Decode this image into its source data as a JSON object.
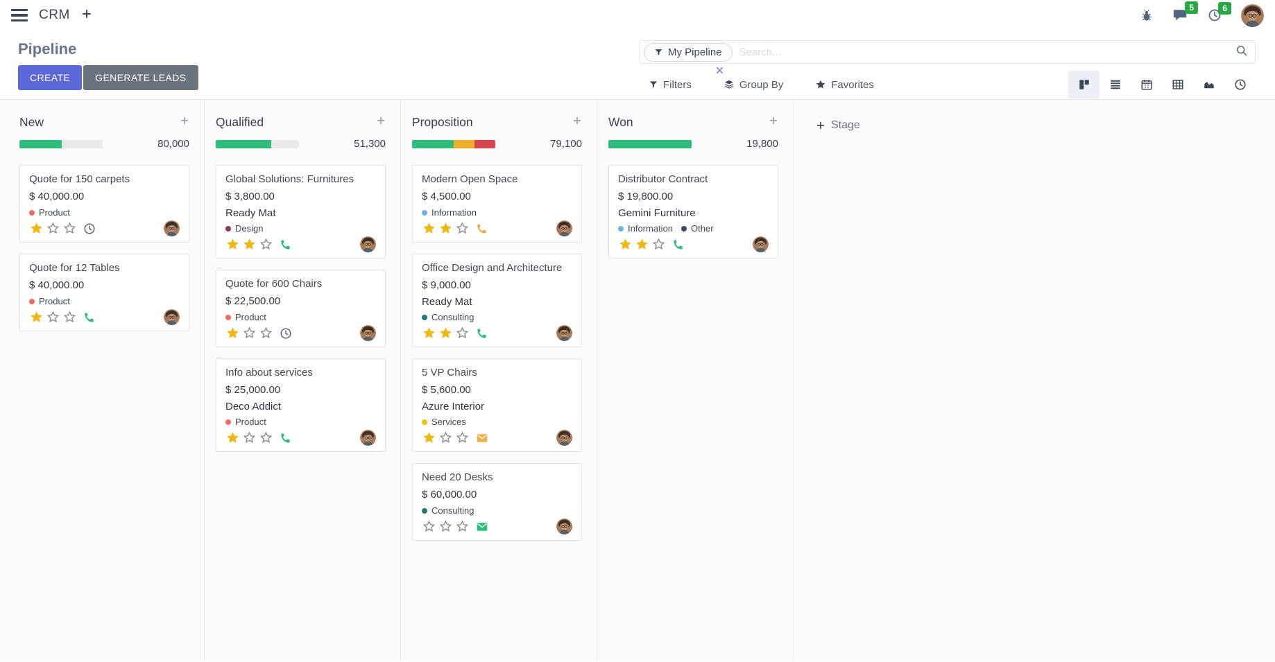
{
  "theme": {
    "primary": "#5C67D8",
    "secondary": "#6C727E",
    "success": "#2EBD7D",
    "warning": "#F0AD27",
    "danger": "#D9444F",
    "badge_green": "#28A745"
  },
  "navbar": {
    "app_name": "CRM",
    "message_badge": "5",
    "activity_badge": "6"
  },
  "control_panel": {
    "title": "Pipeline",
    "create_label": "CREATE",
    "generate_leads_label": "GENERATE LEADS",
    "search": {
      "facet_label": "My Pipeline",
      "placeholder": "Search..."
    },
    "filters_label": "Filters",
    "group_by_label": "Group By",
    "favorites_label": "Favorites"
  },
  "board": {
    "add_stage_label": "Stage",
    "columns": [
      {
        "name": "New",
        "total": "80,000",
        "progress": [
          {
            "color": "#2EBD7D",
            "pct": 51
          }
        ],
        "cards": [
          {
            "title": "Quote for 150 carpets",
            "amount": "$ 40,000.00",
            "tags": [
              {
                "label": "Product",
                "color": "#EF6C62"
              }
            ],
            "stars": 1,
            "activity": {
              "icon": "clock",
              "color": "#5E6B81"
            }
          },
          {
            "title": "Quote for 12 Tables",
            "amount": "$ 40,000.00",
            "tags": [
              {
                "label": "Product",
                "color": "#EF6C62"
              }
            ],
            "stars": 1,
            "activity": {
              "icon": "phone",
              "color": "#2EBD7D"
            }
          }
        ]
      },
      {
        "name": "Qualified",
        "total": "51,300",
        "progress": [
          {
            "color": "#2EBD7D",
            "pct": 67
          }
        ],
        "cards": [
          {
            "title": "Global Solutions: Furnitures",
            "amount": "$ 3,800.00",
            "company": "Ready Mat",
            "tags": [
              {
                "label": "Design",
                "color": "#87395F"
              }
            ],
            "stars": 2,
            "activity": {
              "icon": "phone",
              "color": "#2EBD7D"
            }
          },
          {
            "title": "Quote for 600 Chairs",
            "amount": "$ 22,500.00",
            "tags": [
              {
                "label": "Product",
                "color": "#EF6C62"
              }
            ],
            "stars": 1,
            "activity": {
              "icon": "clock",
              "color": "#5E6B81"
            }
          },
          {
            "title": "Info about services",
            "amount": "$ 25,000.00",
            "company": "Deco Addict",
            "tags": [
              {
                "label": "Product",
                "color": "#EF6C62"
              }
            ],
            "stars": 1,
            "activity": {
              "icon": "phone",
              "color": "#2EBD7D"
            }
          }
        ]
      },
      {
        "name": "Proposition",
        "total": "79,100",
        "progress": [
          {
            "color": "#2EBD7D",
            "pct": 50
          },
          {
            "color": "#F0AD27",
            "pct": 25
          },
          {
            "color": "#D9444F",
            "pct": 25
          }
        ],
        "cards": [
          {
            "title": "Modern Open Space",
            "amount": "$ 4,500.00",
            "tags": [
              {
                "label": "Information",
                "color": "#6FB3E0"
              }
            ],
            "stars": 2,
            "activity": {
              "icon": "phone",
              "color": "#EDAF4C"
            }
          },
          {
            "title": "Office Design and Architecture",
            "amount": "$ 9,000.00",
            "company": "Ready Mat",
            "tags": [
              {
                "label": "Consulting",
                "color": "#1F7A70"
              }
            ],
            "stars": 2,
            "activity": {
              "icon": "phone",
              "color": "#2EBD7D"
            }
          },
          {
            "title": "5 VP Chairs",
            "amount": "$ 5,600.00",
            "company": "Azure Interior",
            "tags": [
              {
                "label": "Services",
                "color": "#EDC50F"
              }
            ],
            "stars": 1,
            "activity": {
              "icon": "envelope",
              "color": "#EDAF4C"
            }
          },
          {
            "title": "Need 20 Desks",
            "amount": "$ 60,000.00",
            "tags": [
              {
                "label": "Consulting",
                "color": "#1F7A70"
              }
            ],
            "stars": 0,
            "activity": {
              "icon": "envelope",
              "color": "#2EBD7D"
            }
          }
        ]
      },
      {
        "name": "Won",
        "total": "19,800",
        "progress": [
          {
            "color": "#2EBD7D",
            "pct": 100
          }
        ],
        "cards": [
          {
            "title": "Distributor Contract",
            "amount": "$ 19,800.00",
            "company": "Gemini Furniture",
            "tags": [
              {
                "label": "Information",
                "color": "#6FB3E0"
              },
              {
                "label": "Other",
                "color": "#3A4A63"
              }
            ],
            "stars": 2,
            "activity": {
              "icon": "phone",
              "color": "#2EBD7D"
            }
          }
        ]
      }
    ]
  }
}
